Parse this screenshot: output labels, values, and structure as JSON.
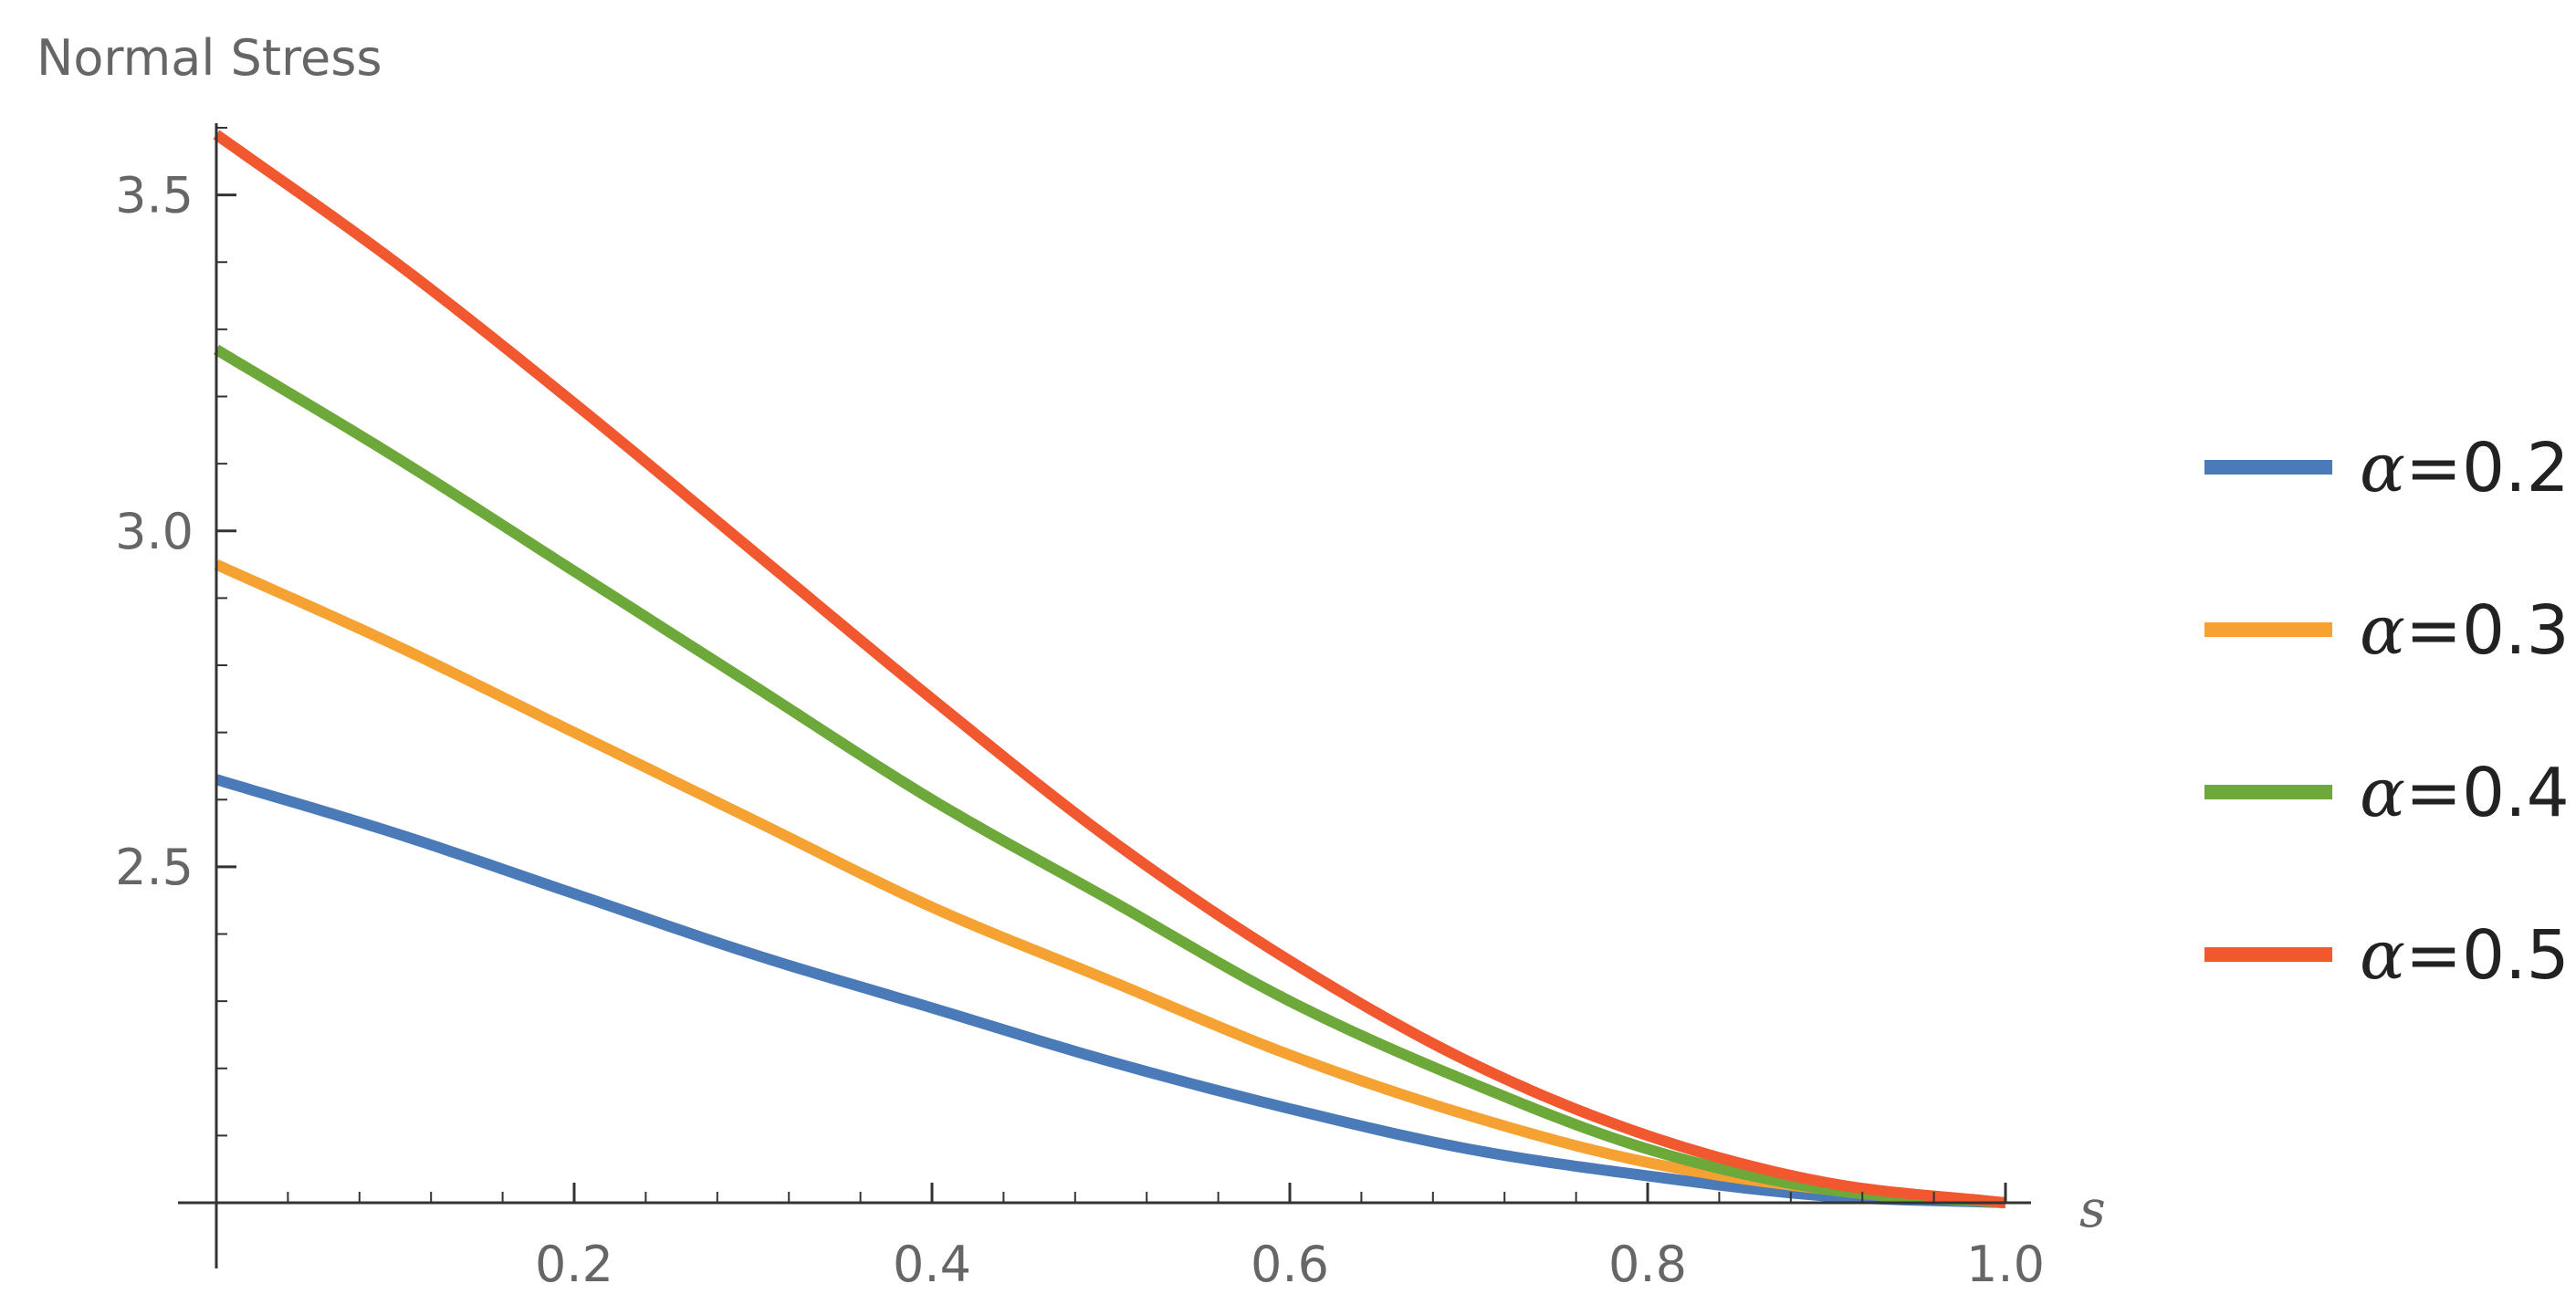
{
  "chart_data": {
    "type": "line",
    "title": "",
    "xlabel": "s",
    "ylabel": "Normal Stress",
    "xlim": [
      0.0,
      1.0
    ],
    "ylim": [
      2.0,
      3.65
    ],
    "x_ticks": [
      0.2,
      0.4,
      0.6,
      0.8,
      1.0
    ],
    "x_tick_labels": [
      "0.2",
      "0.4",
      "0.6",
      "0.8",
      "1.0"
    ],
    "y_ticks": [
      2.5,
      3.0,
      3.5
    ],
    "y_tick_labels": [
      "2.5",
      "3.0",
      "3.5"
    ],
    "grid": false,
    "legend_position": "right",
    "x": [
      0.0,
      0.1,
      0.2,
      0.3,
      0.4,
      0.5,
      0.6,
      0.7,
      0.8,
      0.9,
      1.0
    ],
    "series": [
      {
        "name": "α=0.2",
        "legend_symbol": "α",
        "legend_value": "=0.2",
        "color": "#4a7ab7",
        "values": [
          2.63,
          2.55,
          2.46,
          2.37,
          2.29,
          2.21,
          2.14,
          2.08,
          2.04,
          2.01,
          2.0
        ]
      },
      {
        "name": "α=0.3",
        "legend_symbol": "α",
        "legend_value": "=0.3",
        "color": "#f5a233",
        "values": [
          2.95,
          2.83,
          2.7,
          2.57,
          2.44,
          2.33,
          2.22,
          2.13,
          2.06,
          2.02,
          2.0
        ]
      },
      {
        "name": "α=0.4",
        "legend_symbol": "α",
        "legend_value": "=0.4",
        "color": "#6da83a",
        "values": [
          3.27,
          3.11,
          2.94,
          2.77,
          2.6,
          2.45,
          2.3,
          2.18,
          2.08,
          2.02,
          2.0
        ]
      },
      {
        "name": "α=0.5",
        "legend_symbol": "α",
        "legend_value": "=0.5",
        "color": "#f1582f",
        "values": [
          3.59,
          3.4,
          3.19,
          2.97,
          2.75,
          2.54,
          2.36,
          2.21,
          2.1,
          2.03,
          2.0
        ]
      }
    ]
  }
}
